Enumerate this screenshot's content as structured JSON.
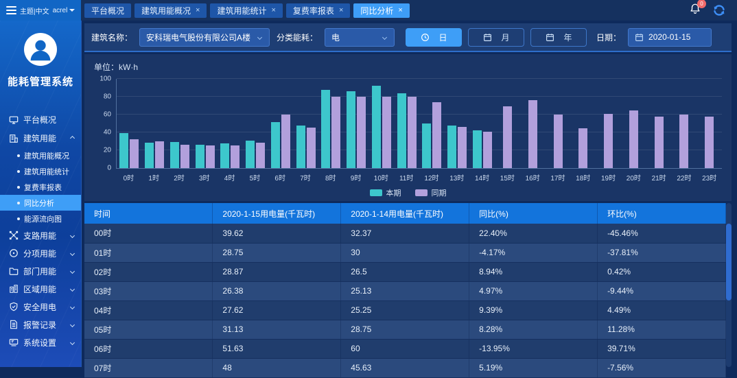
{
  "topbar": {
    "theme_lang": "主题|中文",
    "user": "acrel",
    "tabs": [
      {
        "id": "platform-overview",
        "label": "平台概况",
        "closable": false,
        "active": false
      },
      {
        "id": "building-energy-overview",
        "label": "建筑用能概况",
        "closable": true,
        "active": false
      },
      {
        "id": "building-energy-stats",
        "label": "建筑用能统计",
        "closable": true,
        "active": false
      },
      {
        "id": "tariff-rate-report",
        "label": "复费率报表",
        "closable": true,
        "active": false
      },
      {
        "id": "yoy-analysis",
        "label": "同比分析",
        "closable": true,
        "active": true
      }
    ],
    "notification_badge": "0"
  },
  "sidebar": {
    "app_title": "能耗管理系统",
    "menu": [
      {
        "id": "platform-overview",
        "label": "平台概况",
        "icon": "monitor-icon"
      },
      {
        "id": "building-energy",
        "label": "建筑用能",
        "icon": "building-icon",
        "expanded": true,
        "children": [
          {
            "id": "building-energy-overview",
            "label": "建筑用能概况",
            "active": false
          },
          {
            "id": "building-energy-stats",
            "label": "建筑用能统计",
            "active": false
          },
          {
            "id": "tariff-rate-report",
            "label": "复费率报表",
            "active": false
          },
          {
            "id": "yoy-analysis",
            "label": "同比分析",
            "active": true
          },
          {
            "id": "energy-flow-diagram",
            "label": "能源流向图",
            "active": false
          }
        ]
      },
      {
        "id": "branch-energy",
        "label": "支路用能",
        "icon": "branch-icon",
        "expanded": false
      },
      {
        "id": "subitem-energy",
        "label": "分项用能",
        "icon": "pie-icon",
        "expanded": false
      },
      {
        "id": "department-energy",
        "label": "部门用能",
        "icon": "folder-icon",
        "expanded": false
      },
      {
        "id": "region-energy",
        "label": "区域用能",
        "icon": "region-icon",
        "expanded": false
      },
      {
        "id": "electrical-safety",
        "label": "安全用电",
        "icon": "shield-icon",
        "expanded": false
      },
      {
        "id": "alarm-records",
        "label": "报警记录",
        "icon": "document-icon",
        "expanded": false
      },
      {
        "id": "system-settings",
        "label": "系统设置",
        "icon": "system-icon",
        "expanded": false
      }
    ]
  },
  "filters": {
    "building_label": "建筑名称：",
    "building_value": "安科瑞电气股份有限公司A楼",
    "category_label": "分类能耗：",
    "category_value": "电",
    "period_buttons": [
      {
        "id": "day",
        "label": "日",
        "icon": "clock-icon",
        "active": true
      },
      {
        "id": "month",
        "label": "月",
        "icon": "calendar-icon",
        "active": false
      },
      {
        "id": "year",
        "label": "年",
        "icon": "calendar-icon",
        "active": false
      }
    ],
    "date_label": "日期：",
    "date_value": "2020-01-15"
  },
  "chart_data": {
    "type": "bar",
    "title": "",
    "unit_label": "单位：kW·h",
    "categories": [
      "0时",
      "1时",
      "2时",
      "3时",
      "4时",
      "5时",
      "6时",
      "7时",
      "8时",
      "9时",
      "10时",
      "11时",
      "12时",
      "13时",
      "14时",
      "15时",
      "16时",
      "17时",
      "18时",
      "19时",
      "20时",
      "21时",
      "22时",
      "23时"
    ],
    "series": [
      {
        "name": "本期",
        "color": "#3dc7cc",
        "values": [
          39.62,
          28.75,
          28.87,
          26.38,
          27.62,
          31.13,
          51.63,
          48,
          88,
          86,
          92,
          84,
          50,
          48,
          42,
          null,
          null,
          null,
          null,
          null,
          null,
          null,
          null,
          null
        ]
      },
      {
        "name": "同期",
        "color": "#b2a0dc",
        "values": [
          32.37,
          30,
          26.5,
          25.13,
          25.25,
          28.75,
          60,
          45.63,
          80,
          80,
          80,
          80,
          74,
          46,
          41,
          69,
          76,
          60,
          45,
          61,
          65,
          58,
          60,
          58
        ]
      }
    ],
    "ylim": [
      0,
      100
    ],
    "yticks": [
      0,
      20,
      40,
      60,
      80,
      100
    ],
    "grid": true,
    "legend_position": "bottom"
  },
  "table": {
    "headers": [
      "时间",
      "2020-1-15用电量(千瓦时)",
      "2020-1-14用电量(千瓦时)",
      "同比(%)",
      "环比(%)"
    ],
    "rows": [
      [
        "00时",
        "39.62",
        "32.37",
        "22.40%",
        "-45.46%"
      ],
      [
        "01时",
        "28.75",
        "30",
        "-4.17%",
        "-37.81%"
      ],
      [
        "02时",
        "28.87",
        "26.5",
        "8.94%",
        "0.42%"
      ],
      [
        "03时",
        "26.38",
        "25.13",
        "4.97%",
        "-9.44%"
      ],
      [
        "04时",
        "27.62",
        "25.25",
        "9.39%",
        "4.49%"
      ],
      [
        "05时",
        "31.13",
        "28.75",
        "8.28%",
        "11.28%"
      ],
      [
        "06时",
        "51.63",
        "60",
        "-13.95%",
        "39.71%"
      ],
      [
        "07时",
        "48",
        "45.63",
        "5.19%",
        "-7.56%"
      ]
    ]
  }
}
